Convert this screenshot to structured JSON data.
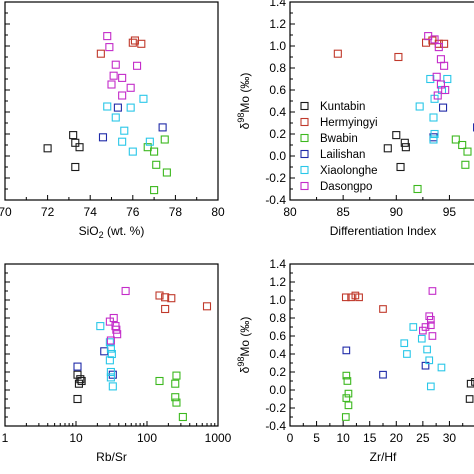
{
  "colors": {
    "Kuntabin": "#1a1a1a",
    "Hermyingyi": "#c0392b",
    "Bwabin": "#3cb81e",
    "Lailishan": "#1f2aa8",
    "Xiaolonghe": "#29c7e8",
    "Dasongpo": "#c42cc9"
  },
  "legend": {
    "placement": "inside-lower-left of top-right panel",
    "entries": [
      "Kuntabin",
      "Hermyingyi",
      "Bwabin",
      "Lailishan",
      "Xiaolonghe",
      "Dasongpo"
    ]
  },
  "chart_data": [
    {
      "type": "scatter",
      "panel": "top-left",
      "title": "",
      "xlabel": "SiO2 (wt. %)",
      "ylabel": "",
      "xlim": [
        70,
        80
      ],
      "ylim": [
        -0.4,
        1.4
      ],
      "xticks": [
        "70",
        "72",
        "74",
        "76",
        "78",
        "80"
      ],
      "yticks": [],
      "grid": false,
      "series": [
        {
          "name": "Kuntabin",
          "points": [
            [
              72.0,
              0.07
            ],
            [
              73.2,
              0.19
            ],
            [
              73.3,
              0.12
            ],
            [
              73.5,
              0.08
            ],
            [
              73.3,
              -0.1
            ]
          ]
        },
        {
          "name": "Hermyingyi",
          "points": [
            [
              74.5,
              0.93
            ],
            [
              76.0,
              1.03
            ],
            [
              76.1,
              1.05
            ],
            [
              76.4,
              1.02
            ]
          ]
        },
        {
          "name": "Bwabin",
          "points": [
            [
              76.7,
              0.08
            ],
            [
              77.0,
              0.04
            ],
            [
              77.5,
              0.15
            ],
            [
              77.1,
              -0.08
            ],
            [
              77.6,
              -0.15
            ],
            [
              77.0,
              -0.31
            ]
          ]
        },
        {
          "name": "Lailishan",
          "points": [
            [
              74.6,
              0.17
            ],
            [
              75.3,
              0.44
            ],
            [
              77.4,
              0.26
            ]
          ]
        },
        {
          "name": "Xiaolonghe",
          "points": [
            [
              74.8,
              0.45
            ],
            [
              75.9,
              0.44
            ],
            [
              76.5,
              0.52
            ],
            [
              75.6,
              0.23
            ],
            [
              75.5,
              0.13
            ],
            [
              75.2,
              0.35
            ],
            [
              76.0,
              0.04
            ],
            [
              76.8,
              0.13
            ]
          ]
        },
        {
          "name": "Dasongpo",
          "points": [
            [
              74.8,
              1.09
            ],
            [
              74.9,
              0.99
            ],
            [
              75.2,
              0.83
            ],
            [
              75.1,
              0.73
            ],
            [
              75.5,
              0.71
            ],
            [
              75.9,
              0.62
            ],
            [
              76.2,
              0.82
            ],
            [
              75.0,
              0.65
            ],
            [
              75.5,
              0.55
            ]
          ]
        }
      ]
    },
    {
      "type": "scatter",
      "panel": "top-right",
      "title": "",
      "xlabel": "Differentiation Index",
      "ylabel": "δ98Mo (‰)",
      "ylabel_main": "δ",
      "ylabel_sup": "98",
      "ylabel_rest": "Mo (‰)",
      "xlim": [
        80,
        97.5
      ],
      "ylim": [
        -0.4,
        1.4
      ],
      "xticks": [
        "80",
        "85",
        "90",
        "95"
      ],
      "yticks": [
        "-0.4",
        "-0.2",
        "0.0",
        "0.2",
        "0.4",
        "0.6",
        "0.8",
        "1.0",
        "1.2",
        "1.4"
      ],
      "grid": false,
      "series": [
        {
          "name": "Kuntabin",
          "points": [
            [
              89.2,
              0.07
            ],
            [
              90.0,
              0.19
            ],
            [
              90.8,
              0.12
            ],
            [
              90.9,
              0.08
            ],
            [
              90.4,
              -0.1
            ]
          ]
        },
        {
          "name": "Hermyingyi",
          "points": [
            [
              84.5,
              0.93
            ],
            [
              90.2,
              0.9
            ],
            [
              92.8,
              1.03
            ],
            [
              93.4,
              1.05
            ],
            [
              94.0,
              1.02
            ],
            [
              94.5,
              1.02
            ]
          ]
        },
        {
          "name": "Bwabin",
          "points": [
            [
              92.0,
              -0.3
            ],
            [
              95.6,
              0.15
            ],
            [
              96.2,
              0.1
            ],
            [
              96.5,
              -0.08
            ],
            [
              96.7,
              0.04
            ]
          ]
        },
        {
          "name": "Lailishan",
          "points": [
            [
              93.5,
              0.17
            ],
            [
              94.4,
              0.44
            ],
            [
              97.6,
              0.26
            ]
          ]
        },
        {
          "name": "Xiaolonghe",
          "points": [
            [
              92.2,
              0.45
            ],
            [
              93.2,
              0.7
            ],
            [
              93.6,
              0.52
            ],
            [
              94.3,
              0.6
            ],
            [
              93.6,
              0.2
            ],
            [
              93.5,
              0.15
            ],
            [
              93.5,
              0.35
            ],
            [
              94.8,
              0.7
            ]
          ]
        },
        {
          "name": "Dasongpo",
          "points": [
            [
              93.0,
              1.09
            ],
            [
              93.6,
              1.06
            ],
            [
              94.0,
              0.99
            ],
            [
              94.2,
              0.88
            ],
            [
              94.5,
              0.82
            ],
            [
              93.8,
              0.72
            ],
            [
              94.2,
              0.65
            ],
            [
              94.6,
              0.6
            ],
            [
              93.9,
              0.55
            ]
          ]
        }
      ]
    },
    {
      "type": "scatter",
      "panel": "bottom-left",
      "title": "",
      "xlabel": "Rb/Sr",
      "ylabel": "",
      "xscale": "log",
      "xlim": [
        1,
        1000
      ],
      "ylim": [
        -0.4,
        1.4
      ],
      "xticks": [
        "1",
        "10",
        "100",
        "1000"
      ],
      "yticks": [],
      "grid": false,
      "series": [
        {
          "name": "Kuntabin",
          "points": [
            [
              10.5,
              0.17
            ],
            [
              11.0,
              0.07
            ],
            [
              12.0,
              0.1
            ],
            [
              11.5,
              0.12
            ],
            [
              10.5,
              -0.1
            ]
          ]
        },
        {
          "name": "Hermyingyi",
          "points": [
            [
              150,
              1.05
            ],
            [
              180,
              1.03
            ],
            [
              220,
              1.02
            ],
            [
              180,
              0.9
            ],
            [
              700,
              0.93
            ]
          ]
        },
        {
          "name": "Bwabin",
          "points": [
            [
              150,
              0.1
            ],
            [
              250,
              0.07
            ],
            [
              260,
              0.16
            ],
            [
              250,
              -0.08
            ],
            [
              260,
              -0.14
            ],
            [
              320,
              -0.3
            ]
          ]
        },
        {
          "name": "Lailishan",
          "points": [
            [
              10.5,
              0.26
            ],
            [
              25,
              0.43
            ],
            [
              33,
              0.17
            ]
          ]
        },
        {
          "name": "Xiaolonghe",
          "points": [
            [
              22,
              0.71
            ],
            [
              30,
              0.53
            ],
            [
              31,
              0.46
            ],
            [
              32,
              0.4
            ],
            [
              31,
              0.2
            ],
            [
              31,
              0.14
            ],
            [
              33,
              0.04
            ],
            [
              30,
              0.33
            ]
          ]
        },
        {
          "name": "Dasongpo",
          "points": [
            [
              50,
              1.1
            ],
            [
              30,
              0.76
            ],
            [
              34,
              0.8
            ],
            [
              36,
              0.71
            ],
            [
              37,
              0.67
            ],
            [
              38,
              0.62
            ],
            [
              31,
              0.55
            ]
          ]
        }
      ]
    },
    {
      "type": "scatter",
      "panel": "bottom-right",
      "title": "",
      "xlabel": "Zr/Hf",
      "ylabel": "δ98Mo (‰)",
      "ylabel_main": "δ",
      "ylabel_sup": "98",
      "ylabel_rest": "Mo (‰)",
      "xlim": [
        0,
        35
      ],
      "ylim": [
        -0.4,
        1.4
      ],
      "xticks": [
        "0",
        "5",
        "10",
        "15",
        "20",
        "25",
        "30"
      ],
      "yticks": [
        "-0.4",
        "-0.2",
        "0.0",
        "0.2",
        "0.4",
        "0.6",
        "0.8",
        "1.0",
        "1.2",
        "1.4"
      ],
      "grid": false,
      "series": [
        {
          "name": "Kuntabin",
          "points": [
            [
              34.0,
              0.07
            ],
            [
              34.8,
              0.09
            ],
            [
              33.8,
              -0.1
            ]
          ]
        },
        {
          "name": "Hermyingyi",
          "points": [
            [
              10.5,
              1.03
            ],
            [
              11.5,
              1.03
            ],
            [
              12.3,
              1.05
            ],
            [
              13.0,
              1.03
            ],
            [
              17.5,
              0.9
            ]
          ]
        },
        {
          "name": "Bwabin",
          "points": [
            [
              10.6,
              0.16
            ],
            [
              10.8,
              0.1
            ],
            [
              11.0,
              -0.04
            ],
            [
              10.6,
              -0.09
            ],
            [
              11.0,
              -0.17
            ],
            [
              10.5,
              -0.3
            ]
          ]
        },
        {
          "name": "Lailishan",
          "points": [
            [
              10.6,
              0.44
            ],
            [
              17.5,
              0.17
            ],
            [
              25.5,
              0.27
            ]
          ]
        },
        {
          "name": "Xiaolonghe",
          "points": [
            [
              21.5,
              0.52
            ],
            [
              23.2,
              0.7
            ],
            [
              24.8,
              0.57
            ],
            [
              25.8,
              0.45
            ],
            [
              26.2,
              0.33
            ],
            [
              28.5,
              0.25
            ],
            [
              26.5,
              0.04
            ],
            [
              22.0,
              0.4
            ]
          ]
        },
        {
          "name": "Dasongpo",
          "points": [
            [
              26.8,
              1.1
            ],
            [
              26.2,
              0.82
            ],
            [
              26.5,
              0.78
            ],
            [
              25.5,
              0.7
            ],
            [
              26.5,
              0.72
            ],
            [
              25.0,
              0.66
            ],
            [
              26.8,
              0.6
            ]
          ]
        }
      ]
    }
  ]
}
